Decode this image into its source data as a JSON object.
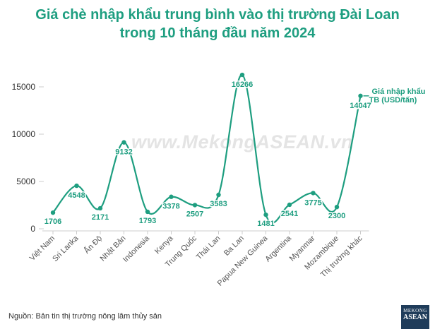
{
  "title_line1": "Giá chè nhập khẩu trung bình vào thị trường Đài Loan",
  "title_line2": "trong 10 tháng đầu năm 2024",
  "watermark": "www.MekongASEAN.vn",
  "source": "Nguồn: Bản tin thị trường nông lâm thủy sản",
  "logo": {
    "line1": "MEKONG",
    "line2": "ASEAN"
  },
  "colors": {
    "series": "#1e9e80",
    "title": "#1e9e80",
    "axis": "#cccccc",
    "text": "#333333"
  },
  "chart_data": {
    "type": "line",
    "categories": [
      "Việt Nam",
      "Sri Lanka",
      "Ấn Độ",
      "Nhật Bản",
      "Indonesia",
      "Kenya",
      "Trung Quốc",
      "Thái Lan",
      "Ba Lan",
      "Papua New Guinea",
      "Argentina",
      "Myanmar",
      "Mozambique",
      "Thị trường khác"
    ],
    "series": [
      {
        "name": "Giá nhập khẩu TB (USD/tấn)",
        "values": [
          1706,
          4548,
          2171,
          9132,
          1793,
          3378,
          2507,
          3583,
          16266,
          1481,
          2541,
          3775,
          2300,
          14047
        ]
      }
    ],
    "yticks": [
      0,
      5000,
      10000,
      15000
    ],
    "ylim": [
      0,
      17000
    ],
    "grid": false,
    "legend_position": "end-of-line label"
  }
}
